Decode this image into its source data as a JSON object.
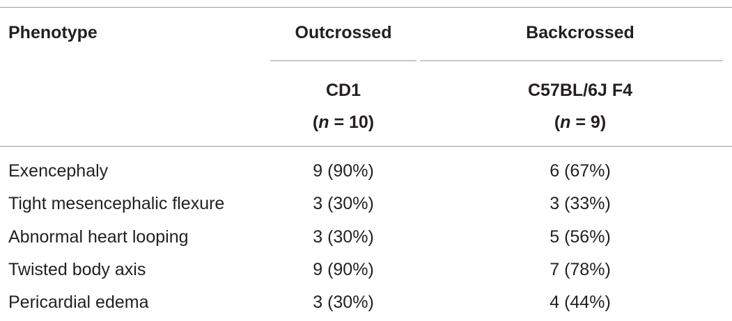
{
  "table": {
    "header": [
      "Phenotype",
      "Outcrossed",
      "Backcrossed"
    ],
    "subheader": [
      {
        "strain": "CD1",
        "n_open": "(",
        "n_symbol": "n",
        "n_rest": " = 10)"
      },
      {
        "strain": "C57BL/6J F4",
        "n_open": "(",
        "n_symbol": "n",
        "n_rest": " = 9)"
      }
    ],
    "rows": [
      [
        "Exencephaly",
        "9 (90%)",
        "6 (67%)"
      ],
      [
        "Tight mesencephalic flexure",
        "3 (30%)",
        "3 (33%)"
      ],
      [
        "Abnormal heart looping",
        "3 (30%)",
        "5 (56%)"
      ],
      [
        "Twisted body axis",
        "9 (90%)",
        "7 (78%)"
      ],
      [
        "Pericardial edema",
        "3 (30%)",
        "4 (44%)"
      ]
    ]
  }
}
